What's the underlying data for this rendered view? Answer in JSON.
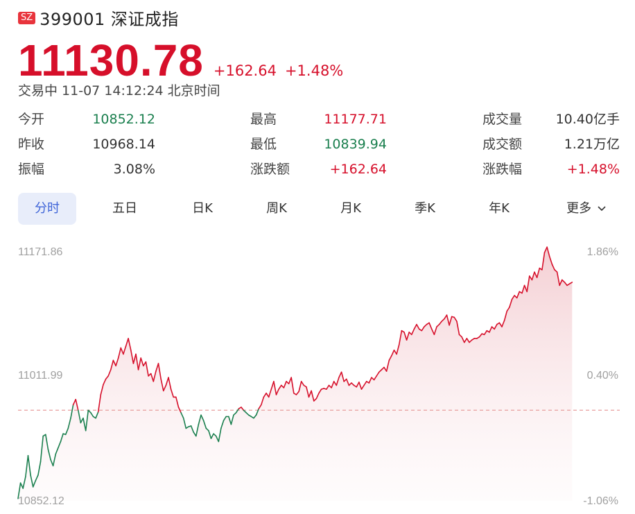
{
  "header": {
    "market_badge": "SZ",
    "code_name": "399001 深证成指"
  },
  "quote": {
    "price": "11130.78",
    "change": "+162.64",
    "change_pct": "+1.48%",
    "status_time": "交易中 11-07 14:12:24 北京时间"
  },
  "stats": [
    {
      "label": "今开",
      "value": "10852.12",
      "tone": "down"
    },
    {
      "label": "最高",
      "value": "11177.71",
      "tone": "up"
    },
    {
      "label": "成交量",
      "value": "10.40亿手",
      "tone": "flat"
    },
    {
      "label": "昨收",
      "value": "10968.14",
      "tone": "flat"
    },
    {
      "label": "最低",
      "value": "10839.94",
      "tone": "down"
    },
    {
      "label": "成交额",
      "value": "1.21万亿",
      "tone": "flat"
    },
    {
      "label": "振幅",
      "value": "3.08%",
      "tone": "flat"
    },
    {
      "label": "涨跌额",
      "value": "+162.64",
      "tone": "up"
    },
    {
      "label": "涨跌幅",
      "value": "+1.48%",
      "tone": "up"
    }
  ],
  "tabs": [
    {
      "label": "分时",
      "active": true
    },
    {
      "label": "五日",
      "active": false
    },
    {
      "label": "日K",
      "active": false
    },
    {
      "label": "周K",
      "active": false
    },
    {
      "label": "月K",
      "active": false
    },
    {
      "label": "季K",
      "active": false
    },
    {
      "label": "年K",
      "active": false
    },
    {
      "label": "更多",
      "active": false,
      "icon": "chevron-down-icon"
    }
  ],
  "colors": {
    "up": "#d60f2a",
    "down": "#1a7f4e",
    "prev_close_line": "#e8a0a0",
    "up_fill": "#f6d3d6",
    "down_fill": "#d6ece2"
  },
  "chart_data": {
    "type": "line",
    "y_labels_left": [
      "11171.86",
      "11011.99",
      "10852.12"
    ],
    "y_labels_right": [
      "1.86%",
      "0.40%",
      "-1.06%"
    ],
    "ylim": [
      10852.12,
      11171.86
    ],
    "prev_close": 10968.14,
    "series": [
      {
        "values": [
          10855,
          10875,
          10868,
          10883,
          10910,
          10885,
          10870,
          10878,
          10885,
          10902,
          10935,
          10937,
          10918,
          10905,
          10897,
          10912,
          10920,
          10928,
          10938,
          10937,
          10945,
          10958,
          10975,
          10982,
          10968,
          10952,
          10958,
          10942,
          10968,
          10965,
          10960,
          10958,
          10966,
          10988,
          11001,
          11008,
          11012,
          11020,
          11032,
          11025,
          11035,
          11048,
          11040,
          11050,
          11060,
          11045,
          11028,
          11040,
          11020,
          11035,
          11025,
          11030,
          11012,
          11015,
          11005,
          11018,
          11028,
          11008,
          10993,
          11000,
          11010,
          10995,
          10985,
          10985,
          10972,
          10965,
          10958,
          10945,
          10947,
          10948,
          10940,
          10935,
          10950,
          10962,
          10955,
          10945,
          10942,
          10932,
          10938,
          10935,
          10928,
          10945,
          10955,
          10960,
          10960,
          10950,
          10962,
          10965,
          10970,
          10972,
          10968,
          10965,
          10962,
          10960,
          10958,
          10962,
          10970,
          10975,
          10985,
          10990,
          10985,
          10995,
          11005,
          10988,
          10995,
          11000,
          10997,
          11005,
          11002,
          11010,
          10990,
          10988,
          10992,
          11005,
          11000,
          10998,
          10985,
          10993,
          10980,
          10983,
          10990,
          10995,
          10996,
          10995,
          11000,
          10997,
          11005,
          11000,
          11010,
          11017,
          11005,
          11008,
          11000,
          11003,
          11000,
          10998,
          11004,
          10995,
          11000,
          11005,
          11003,
          11010,
          11007,
          11012,
          11017,
          11020,
          11023,
          11018,
          11032,
          11038,
          11045,
          11040,
          11052,
          11070,
          11068,
          11058,
          11068,
          11065,
          11072,
          11078,
          11072,
          11070,
          11075,
          11078,
          11080,
          11072,
          11065,
          11075,
          11078,
          11082,
          11085,
          11090,
          11077,
          11088,
          11087,
          11082,
          11065,
          11062,
          11055,
          11060,
          11055,
          11058,
          11060,
          11060,
          11062,
          11066,
          11065,
          11070,
          11068,
          11075,
          11072,
          11078,
          11080,
          11075,
          11083,
          11095,
          11100,
          11110,
          11115,
          11112,
          11120,
          11118,
          11128,
          11120,
          11140,
          11135,
          11145,
          11138,
          11150,
          11148,
          11170,
          11177,
          11165,
          11155,
          11148,
          11145,
          11128,
          11135,
          11132,
          11128,
          11130,
          11132
        ]
      }
    ]
  }
}
